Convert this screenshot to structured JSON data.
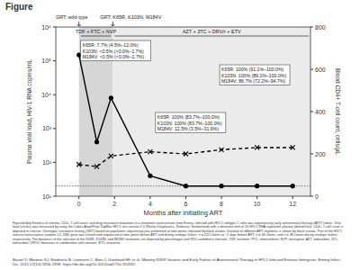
{
  "header": {
    "title": "Figure"
  },
  "chart_data": {
    "type": "line",
    "x_label": "Months after initiating ART",
    "y_label": "Plasma viral load, HIV-1 RNA copies/mL",
    "y2_label": "Blood CD4+ T-cell count, cells/µL",
    "log": "y",
    "grid": false,
    "xlim": [
      -1.3,
      13
    ],
    "xticks": [
      0,
      2,
      4,
      6,
      8,
      10,
      12
    ],
    "ylim": [
      10,
      1000000
    ],
    "yticks": [
      {
        "value": 10,
        "label": "10¹"
      },
      {
        "value": 100,
        "label": "10²"
      },
      {
        "value": 1000,
        "label": "10³"
      },
      {
        "value": 10000,
        "label": "10⁴"
      },
      {
        "value": 100000,
        "label": "10⁵"
      },
      {
        "value": 1000000,
        "label": "10⁶"
      }
    ],
    "y2lim": [
      0,
      800
    ],
    "y2ticks": [
      0,
      200,
      400,
      600,
      800
    ],
    "detection_limit": 20,
    "series": [
      {
        "color": "#000000",
        "marker": "circle",
        "line_style": "solid",
        "x": [
          0,
          1,
          1.8,
          4,
          6,
          8,
          10,
          12
        ],
        "values": [
          150000,
          400,
          8000,
          40,
          20,
          20,
          20,
          20
        ]
      },
      {
        "color": "#000000",
        "marker": "x",
        "line_style": "dashed",
        "axis": "y2",
        "x": [
          0,
          1,
          1.8,
          4,
          6,
          8,
          10,
          12
        ],
        "values": [
          150,
          140,
          190,
          210,
          200,
          220,
          230,
          230
        ]
      }
    ],
    "regimens": [
      {
        "label": "TDF + FTC + NVP",
        "start": 0,
        "end": 1.9
      },
      {
        "label": "AZT + 3TC + DRV/r + ETV",
        "start": 1.9,
        "end": 13
      }
    ],
    "grt": [
      {
        "label": "GRT: wild-type",
        "x": 0
      },
      {
        "label": "GRT: K65R, K103N, M184V",
        "x": 1.9
      }
    ],
    "annotations": [
      {
        "lines": [
          "K65R: 7.7% (4.5%–12.0%)",
          "K103N: <0.5% (<0.0%–1.7%)",
          "M184V: <0.5% (<0.0%–1.7%)"
        ]
      },
      {
        "lines": [
          "K65R: 100% (91.1%–100.0%)",
          "K103N: 100% (89.1%–100.0%)",
          "M184V: 86.7% (72.2%–94.7%)"
        ]
      },
      {
        "lines": [
          "K65R: 100% (83.7%–100.0%)",
          "K103N: 100% (83.7%–100.0%)",
          "M184V: 12.5% (3.5%–31.6%)"
        ]
      }
    ]
  },
  "caption": "Figure&nbsp;Kinetics of viremia, CD4+ T-cell count, and drug resistance mutations in a treatment-naive person from Eritrea, infected with HIV-1 subtype C, who was experiencing early antiretroviral therapy (ART) failure. Viral load (circles) was measured by using the Cobas AmpliPrep TaqMan HIV-1 test version 2.0 (Roche Diagnostics, Rotkreuz, Switzerland) with a detection limit of 20 HIV-1 RNA copies/mL plasma (dotted line). CD4+ T-cell count is depicted in crosses. Genotypic resistance testing (GRT) based on population sequencing was performed at time points indicated by black arrows. Duration of different ART regimens is shown by black arrows. Part of the HIV-1 reverse transcriptase (codons 52–268) gene was cloned and sequenced at time points before ART and during virologic failure; n = 222 clones at ~2 days before ART, n = 34 clones, and n = 38 clones during virologic failure, respectively. The dynamics of the selection of the K65R, K103N, and M184V mutations are depicted by percentages and 95% confidence intervals. TDF, tenofovir; FTC, emtricitabine; NVP, nevirapine; AZT, zidovudine; 3TC, lamivudine; DRV/r, darunavir in combination with ritonavir; ETV, etravirine.",
  "citation": "Barzel V, Metzner KJ, Niederöst B, Leemann C, Böni J, Günthard HF, et al. Minority K65R Variants and Early Failure of Antiretroviral Therapy in HIV-1-Infected Eritrean Immigrant. Emerg Infect Dis. 2011;17(10):1956-1958. https://dx.doi.org/10.3201/eid1710.110592"
}
